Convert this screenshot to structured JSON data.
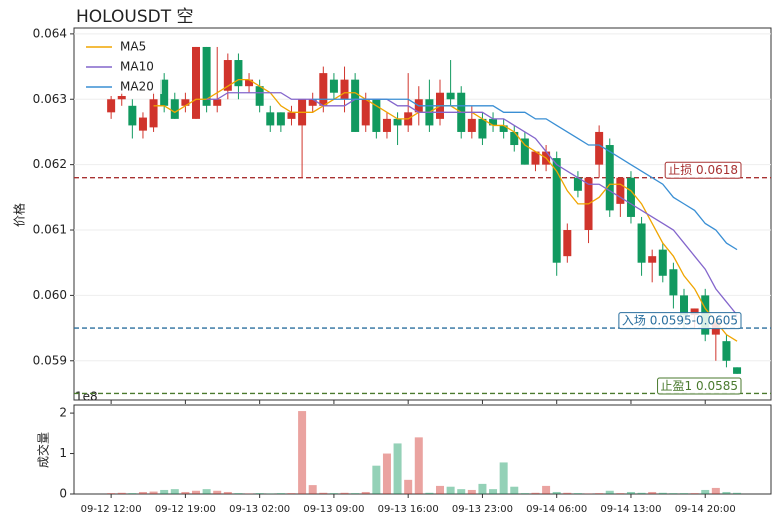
{
  "chart_data": [
    {
      "type": "candlestick",
      "title": "HOLOUSDT  空",
      "y_label": "价格",
      "ylim": [
        0.0584,
        0.06409
      ],
      "yticks": [
        0.059,
        {
          "value": 0.06,
          "label": "0.060"
        },
        0.061,
        0.062,
        0.063,
        0.064
      ],
      "grid": true,
      "legend": "upper left",
      "up_color": "#d0342c",
      "down_color": "#11995f",
      "open": [
        0.0628,
        0.063,
        0.0629,
        0.06252,
        0.06257,
        0.0633,
        0.063,
        0.0629,
        0.0627,
        0.0638,
        0.0629,
        0.06313,
        0.0636,
        0.0632,
        0.0632,
        0.0628,
        0.0628,
        0.0627,
        0.0626,
        0.0629,
        0.0629,
        0.0633,
        0.063,
        0.0633,
        0.0626,
        0.063,
        0.0625,
        0.0627,
        0.0626,
        0.0628,
        0.063,
        0.0627,
        0.0631,
        0.0631,
        0.0625,
        0.0627,
        0.0627,
        0.0626,
        0.0625,
        0.0624,
        0.062,
        0.062,
        0.0621,
        0.0606,
        0.0618,
        0.061,
        0.062,
        0.0623,
        0.0614,
        0.0618,
        0.0611,
        0.0605,
        0.0607,
        0.0604,
        0.06,
        0.0597,
        0.06,
        0.0594,
        0.0593,
        0.0589
      ],
      "high": [
        0.06305,
        0.0631,
        0.063,
        0.0628,
        0.0631,
        0.0634,
        0.0631,
        0.0631,
        0.0638,
        0.0638,
        0.0638,
        0.0637,
        0.0637,
        0.0634,
        0.0633,
        0.0629,
        0.0628,
        0.0629,
        0.063,
        0.0631,
        0.0635,
        0.0634,
        0.0635,
        0.0634,
        0.0631,
        0.063,
        0.0628,
        0.0628,
        0.0634,
        0.0632,
        0.0633,
        0.0633,
        0.0636,
        0.0632,
        0.0629,
        0.0628,
        0.0628,
        0.0627,
        0.0626,
        0.0625,
        0.0622,
        0.0623,
        0.0622,
        0.0611,
        0.0619,
        0.0618,
        0.0626,
        0.0624,
        0.0618,
        0.0619,
        0.0612,
        0.0607,
        0.0608,
        0.0605,
        0.0601,
        0.0598,
        0.0601,
        0.0596,
        0.0594,
        0.0589
      ],
      "low": [
        0.0627,
        0.0629,
        0.0624,
        0.0624,
        0.0625,
        0.0628,
        0.0627,
        0.0628,
        0.0627,
        0.0628,
        0.0628,
        0.063,
        0.063,
        0.0631,
        0.0628,
        0.0625,
        0.0625,
        0.0626,
        0.0618,
        0.0628,
        0.0628,
        0.063,
        0.0628,
        0.0625,
        0.0625,
        0.0624,
        0.0624,
        0.0623,
        0.0625,
        0.0626,
        0.0625,
        0.0626,
        0.0629,
        0.0624,
        0.0624,
        0.0623,
        0.0625,
        0.0624,
        0.0622,
        0.062,
        0.0619,
        0.0619,
        0.0603,
        0.0605,
        0.0615,
        0.0608,
        0.0618,
        0.0612,
        0.0612,
        0.0611,
        0.0603,
        0.0602,
        0.0602,
        0.0598,
        0.0595,
        0.0595,
        0.0593,
        0.059,
        0.0589,
        0.0588
      ],
      "close": [
        0.063,
        0.06305,
        0.0626,
        0.06272,
        0.063,
        0.0629,
        0.0627,
        0.063,
        0.0638,
        0.0629,
        0.063,
        0.0636,
        0.0632,
        0.0633,
        0.0629,
        0.0626,
        0.0626,
        0.0628,
        0.063,
        0.063,
        0.0634,
        0.0631,
        0.0633,
        0.0625,
        0.063,
        0.0625,
        0.0627,
        0.0626,
        0.0628,
        0.063,
        0.0626,
        0.0631,
        0.063,
        0.0625,
        0.0627,
        0.0624,
        0.0626,
        0.0625,
        0.0623,
        0.062,
        0.0622,
        0.0622,
        0.0605,
        0.061,
        0.0616,
        0.0618,
        0.0625,
        0.0613,
        0.0618,
        0.0612,
        0.0605,
        0.0606,
        0.0603,
        0.06,
        0.0597,
        0.0598,
        0.0594,
        0.0596,
        0.059,
        0.0588
      ],
      "series": [
        {
          "name": "MA5",
          "color": "#f0a500",
          "values": [
            null,
            null,
            null,
            null,
            0.0629,
            0.0629,
            0.0628,
            0.0629,
            0.063,
            0.063,
            0.0631,
            0.0632,
            0.0633,
            0.0633,
            0.0632,
            0.0631,
            0.0629,
            0.0628,
            0.0628,
            0.0628,
            0.0629,
            0.063,
            0.0631,
            0.0631,
            0.063,
            0.0629,
            0.0628,
            0.0627,
            0.0627,
            0.0628,
            0.0628,
            0.0629,
            0.0629,
            0.0628,
            0.0628,
            0.0627,
            0.0626,
            0.0626,
            0.0625,
            0.0623,
            0.0622,
            0.0621,
            0.0619,
            0.0616,
            0.0614,
            0.0614,
            0.0615,
            0.0617,
            0.0617,
            0.0616,
            0.0614,
            0.0611,
            0.0608,
            0.0606,
            0.0603,
            0.0601,
            0.0598,
            0.0596,
            0.0594,
            0.0593
          ]
        },
        {
          "name": "MA10",
          "color": "#8466cc",
          "values": [
            null,
            null,
            null,
            null,
            null,
            null,
            null,
            null,
            null,
            0.063,
            0.063,
            0.0631,
            0.0631,
            0.0631,
            0.0631,
            0.0631,
            0.0631,
            0.063,
            0.063,
            0.063,
            0.0629,
            0.0629,
            0.0629,
            0.063,
            0.063,
            0.063,
            0.063,
            0.0629,
            0.0629,
            0.0628,
            0.0628,
            0.0628,
            0.0628,
            0.0628,
            0.0628,
            0.0628,
            0.0627,
            0.0627,
            0.0626,
            0.0625,
            0.0624,
            0.0622,
            0.062,
            0.0619,
            0.0618,
            0.0617,
            0.0617,
            0.0616,
            0.0615,
            0.0614,
            0.0613,
            0.0612,
            0.0611,
            0.061,
            0.0608,
            0.0606,
            0.0604,
            0.0601,
            0.0599,
            0.0597
          ]
        },
        {
          "name": "MA20",
          "color": "#3a8fd4",
          "values": [
            null,
            null,
            null,
            null,
            null,
            null,
            null,
            null,
            null,
            null,
            null,
            null,
            null,
            null,
            null,
            null,
            null,
            null,
            null,
            0.063,
            0.063,
            0.063,
            0.063,
            0.063,
            0.063,
            0.063,
            0.063,
            0.063,
            0.063,
            0.0629,
            0.0629,
            0.0629,
            0.0629,
            0.0629,
            0.0629,
            0.0629,
            0.0629,
            0.0628,
            0.0628,
            0.0628,
            0.0627,
            0.0627,
            0.0626,
            0.0625,
            0.0624,
            0.0623,
            0.0623,
            0.0622,
            0.0621,
            0.062,
            0.0619,
            0.0618,
            0.0617,
            0.0615,
            0.0614,
            0.0613,
            0.0611,
            0.061,
            0.0608,
            0.0607
          ]
        }
      ],
      "annotations": [
        {
          "label": "止损 0.0618",
          "value": 0.0618,
          "color": "#a83232"
        },
        {
          "label": "入场 0.0595-0.0605",
          "value": 0.0595,
          "color": "#2a6f9e"
        },
        {
          "label": "止盈1 0.0585",
          "value": 0.0585,
          "color": "#4a7a2e"
        }
      ]
    },
    {
      "type": "bar",
      "y_label": "成交量",
      "scale_label": "1e8",
      "categories": [
        "09-12 12:00",
        null,
        null,
        null,
        null,
        null,
        null,
        "09-12 19:00",
        null,
        null,
        null,
        null,
        null,
        null,
        "09-13 02:00",
        null,
        null,
        null,
        null,
        null,
        null,
        "09-13 09:00",
        null,
        null,
        null,
        null,
        null,
        null,
        "09-13 16:00",
        null,
        null,
        null,
        null,
        null,
        null,
        "09-13 23:00",
        null,
        null,
        null,
        null,
        null,
        null,
        "09-14 06:00",
        null,
        null,
        null,
        null,
        null,
        null,
        "09-14 13:00",
        null,
        null,
        null,
        null,
        null,
        null,
        "09-14 20:00",
        null,
        null,
        null
      ],
      "values": [
        0.02,
        0.03,
        0.02,
        0.05,
        0.06,
        0.1,
        0.12,
        0.05,
        0.08,
        0.12,
        0.08,
        0.05,
        0.02,
        0.01,
        0.02,
        0.01,
        0.02,
        0.02,
        2.05,
        0.22,
        0.03,
        0.02,
        0.03,
        0.02,
        0.05,
        0.7,
        1.0,
        1.25,
        0.35,
        1.4,
        0.03,
        0.2,
        0.18,
        0.12,
        0.1,
        0.25,
        0.12,
        0.78,
        0.18,
        0.02,
        0.03,
        0.2,
        0.05,
        0.03,
        0.02,
        0.01,
        0.02,
        0.08,
        0.02,
        0.05,
        0.03,
        0.05,
        0.03,
        0.02,
        0.02,
        0.02,
        0.1,
        0.15,
        0.05,
        0.03
      ],
      "ylim": [
        0,
        2.2
      ],
      "yticks": [
        0,
        1,
        2
      ]
    }
  ]
}
